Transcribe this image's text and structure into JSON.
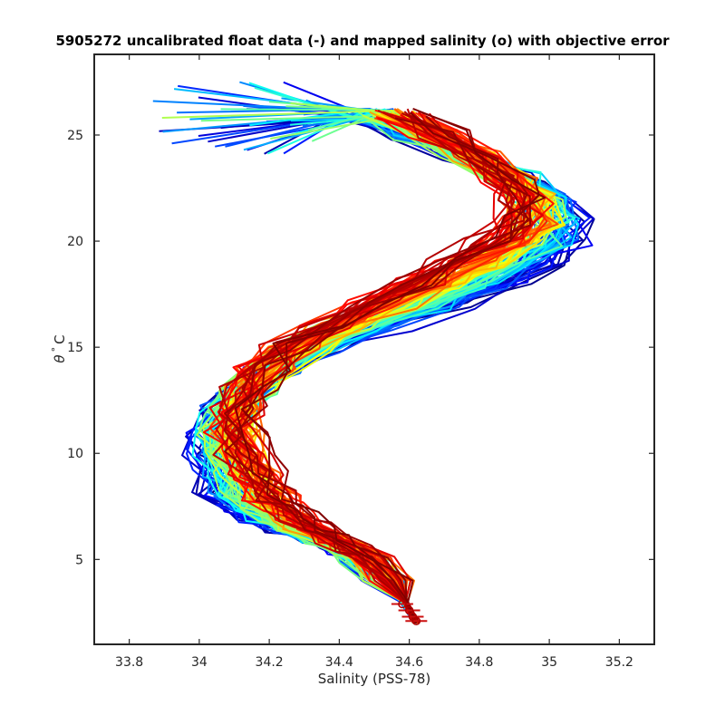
{
  "chart_data": {
    "type": "line",
    "title": "5905272 uncalibrated float data (-) and mapped salinity (o) with objective error",
    "xlabel": "Salinity (PSS-78)",
    "ylabel_symbol": "θ",
    "ylabel_rest": "C",
    "ylabel_degree": "°",
    "xlim": [
      33.7,
      35.3
    ],
    "ylim": [
      1,
      28.8
    ],
    "xticks": [
      33.8,
      34,
      34.2,
      34.4,
      34.6,
      34.8,
      35,
      35.2
    ],
    "xtick_labels": [
      "33.8",
      "34",
      "34.2",
      "34.4",
      "34.6",
      "34.8",
      "35",
      "35.2"
    ],
    "yticks": [
      5,
      10,
      15,
      20,
      25
    ],
    "ytick_labels": [
      "5",
      "10",
      "15",
      "20",
      "25"
    ],
    "grid": false,
    "colormap": "jet",
    "colors": [
      "#00008f",
      "#0000ff",
      "#0080ff",
      "#00ffff",
      "#80ff80",
      "#ffff00",
      "#ff8000",
      "#ff0000",
      "#800000"
    ],
    "n_profiles": 140,
    "profile_shape": {
      "theta": [
        2.0,
        3.0,
        4.0,
        5.0,
        5.5,
        6.0,
        6.5,
        7.0,
        7.5,
        8.0,
        9.0,
        10.0,
        11.0,
        12.0,
        13.0,
        14.0,
        15.0,
        16.0,
        17.0,
        18.0,
        19.0,
        20.0,
        21.0,
        22.0,
        23.0,
        24.0,
        25.0,
        26.0
      ],
      "salinity_start": [
        34.62,
        34.58,
        34.52,
        34.45,
        34.4,
        34.32,
        34.22,
        34.14,
        34.09,
        34.06,
        34.04,
        34.03,
        34.03,
        34.06,
        34.12,
        34.22,
        34.36,
        34.54,
        34.72,
        34.88,
        35.0,
        35.06,
        35.05,
        35.0,
        34.9,
        34.75,
        34.6,
        34.45
      ],
      "salinity_end": [
        34.62,
        34.59,
        34.55,
        34.5,
        34.44,
        34.38,
        34.34,
        34.3,
        34.26,
        34.22,
        34.18,
        34.14,
        34.12,
        34.12,
        34.14,
        34.18,
        34.24,
        34.34,
        34.46,
        34.58,
        34.7,
        34.82,
        34.9,
        34.92,
        34.88,
        34.8,
        34.7,
        34.6
      ]
    },
    "mapped_salinity_points": [
      {
        "salinity": 34.58,
        "theta": 2.9
      },
      {
        "salinity": 34.6,
        "theta": 2.6
      },
      {
        "salinity": 34.61,
        "theta": 2.3
      },
      {
        "salinity": 34.62,
        "theta": 2.1
      }
    ]
  }
}
